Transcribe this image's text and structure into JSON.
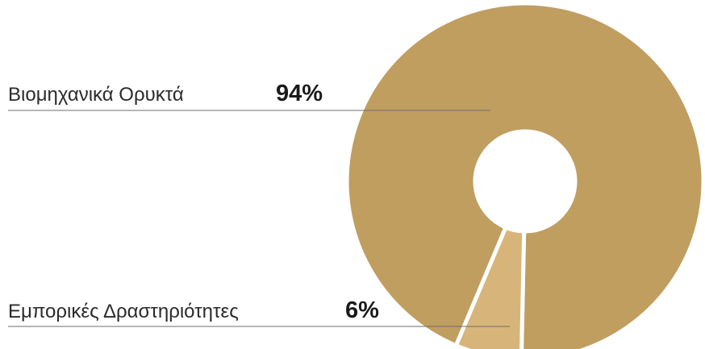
{
  "chart_data": {
    "type": "pie",
    "title": "",
    "slices": [
      {
        "label": "Βιομηχανικά Ορυκτά",
        "value": 94,
        "value_label": "94%",
        "color": "#BF9E60"
      },
      {
        "label": "Εμπορικές Δραστηριότητες",
        "value": 6,
        "value_label": "6%",
        "color": "#D7B57A"
      }
    ],
    "donut": true,
    "legend": "labels left of chart with leader lines",
    "grid": false
  }
}
